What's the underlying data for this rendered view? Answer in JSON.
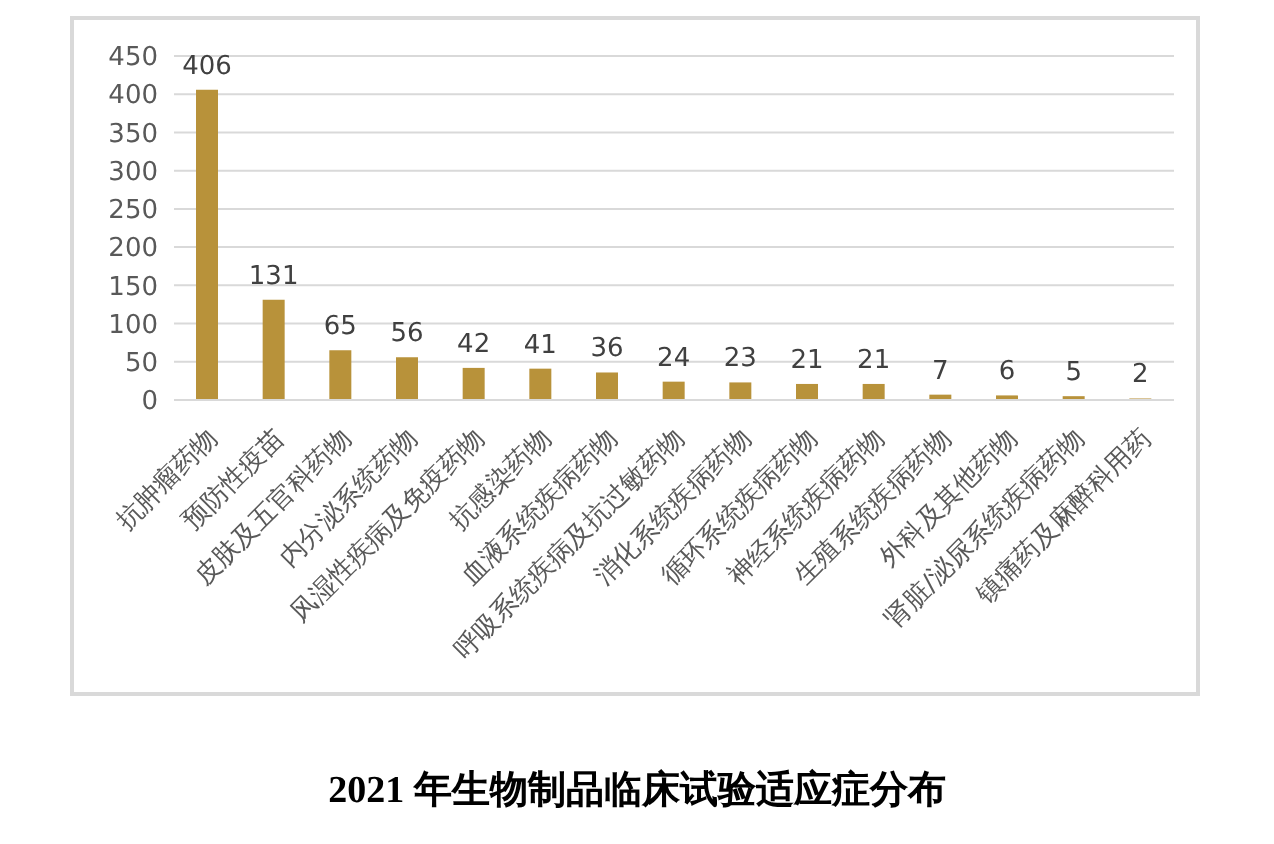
{
  "chart_data": {
    "type": "bar",
    "title": "2021 年生物制品临床试验适应症分布",
    "categories": [
      "抗肿瘤药物",
      "预防性疫苗",
      "皮肤及五官科药物",
      "内分泌系统药物",
      "风湿性疾病及免疫药物",
      "抗感染药物",
      "血液系统疾病药物",
      "呼吸系统疾病及抗过敏药物",
      "消化系统疾病药物",
      "循环系统疾病药物",
      "神经系统疾病药物",
      "生殖系统疾病药物",
      "外科及其他药物",
      "肾脏/泌尿系统疾病药物",
      "镇痛药及麻醉科用药"
    ],
    "values": [
      406,
      131,
      65,
      56,
      42,
      41,
      36,
      24,
      23,
      21,
      21,
      7,
      6,
      5,
      2
    ],
    "color": "#b8923a",
    "ylim": [
      0,
      450
    ],
    "yticks": [
      0,
      50,
      100,
      150,
      200,
      250,
      300,
      350,
      400,
      450
    ],
    "grid": "y",
    "data_labels": true
  }
}
